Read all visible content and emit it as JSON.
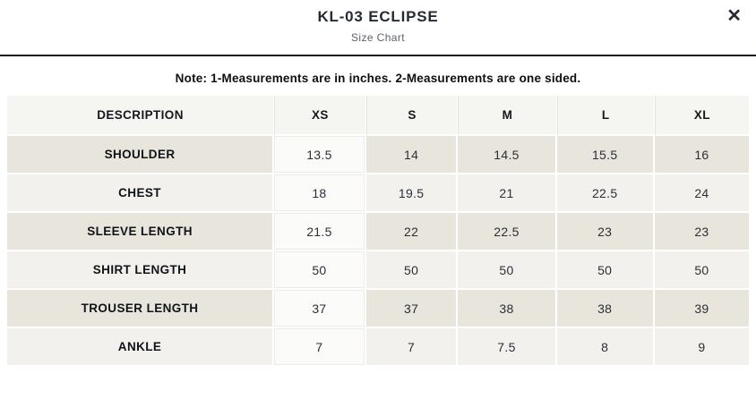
{
  "modal": {
    "title": "KL-03 ECLIPSE",
    "subtitle": "Size Chart",
    "close_glyph": "✕"
  },
  "note": "Note: 1-Measurements are in inches. 2-Measurements are one sided.",
  "table": {
    "columns": [
      "DESCRIPTION",
      "XS",
      "S",
      "M",
      "L",
      "XL"
    ],
    "rows": [
      {
        "label": "SHOULDER",
        "values": [
          "13.5",
          "14",
          "14.5",
          "15.5",
          "16"
        ]
      },
      {
        "label": "CHEST",
        "values": [
          "18",
          "19.5",
          "21",
          "22.5",
          "24"
        ]
      },
      {
        "label": "SLEEVE LENGTH",
        "values": [
          "21.5",
          "22",
          "22.5",
          "23",
          "23"
        ]
      },
      {
        "label": "SHIRT LENGTH",
        "values": [
          "50",
          "50",
          "50",
          "50",
          "50"
        ]
      },
      {
        "label": "TROUSER LENGTH",
        "values": [
          "37",
          "37",
          "38",
          "38",
          "39"
        ]
      },
      {
        "label": "ANKLE",
        "values": [
          "7",
          "7",
          "7.5",
          "8",
          "9"
        ]
      }
    ]
  },
  "colors": {
    "title_text": "#262b33",
    "subtitle_text": "#5d636b",
    "divider": "#14181c",
    "header_bg": "#f5f5f2",
    "row_beige": "#e8e6dc",
    "row_light": "#f2f1ed",
    "xs_cell_bg": "#fbfbfa",
    "cell_text": "#2a2f37"
  }
}
